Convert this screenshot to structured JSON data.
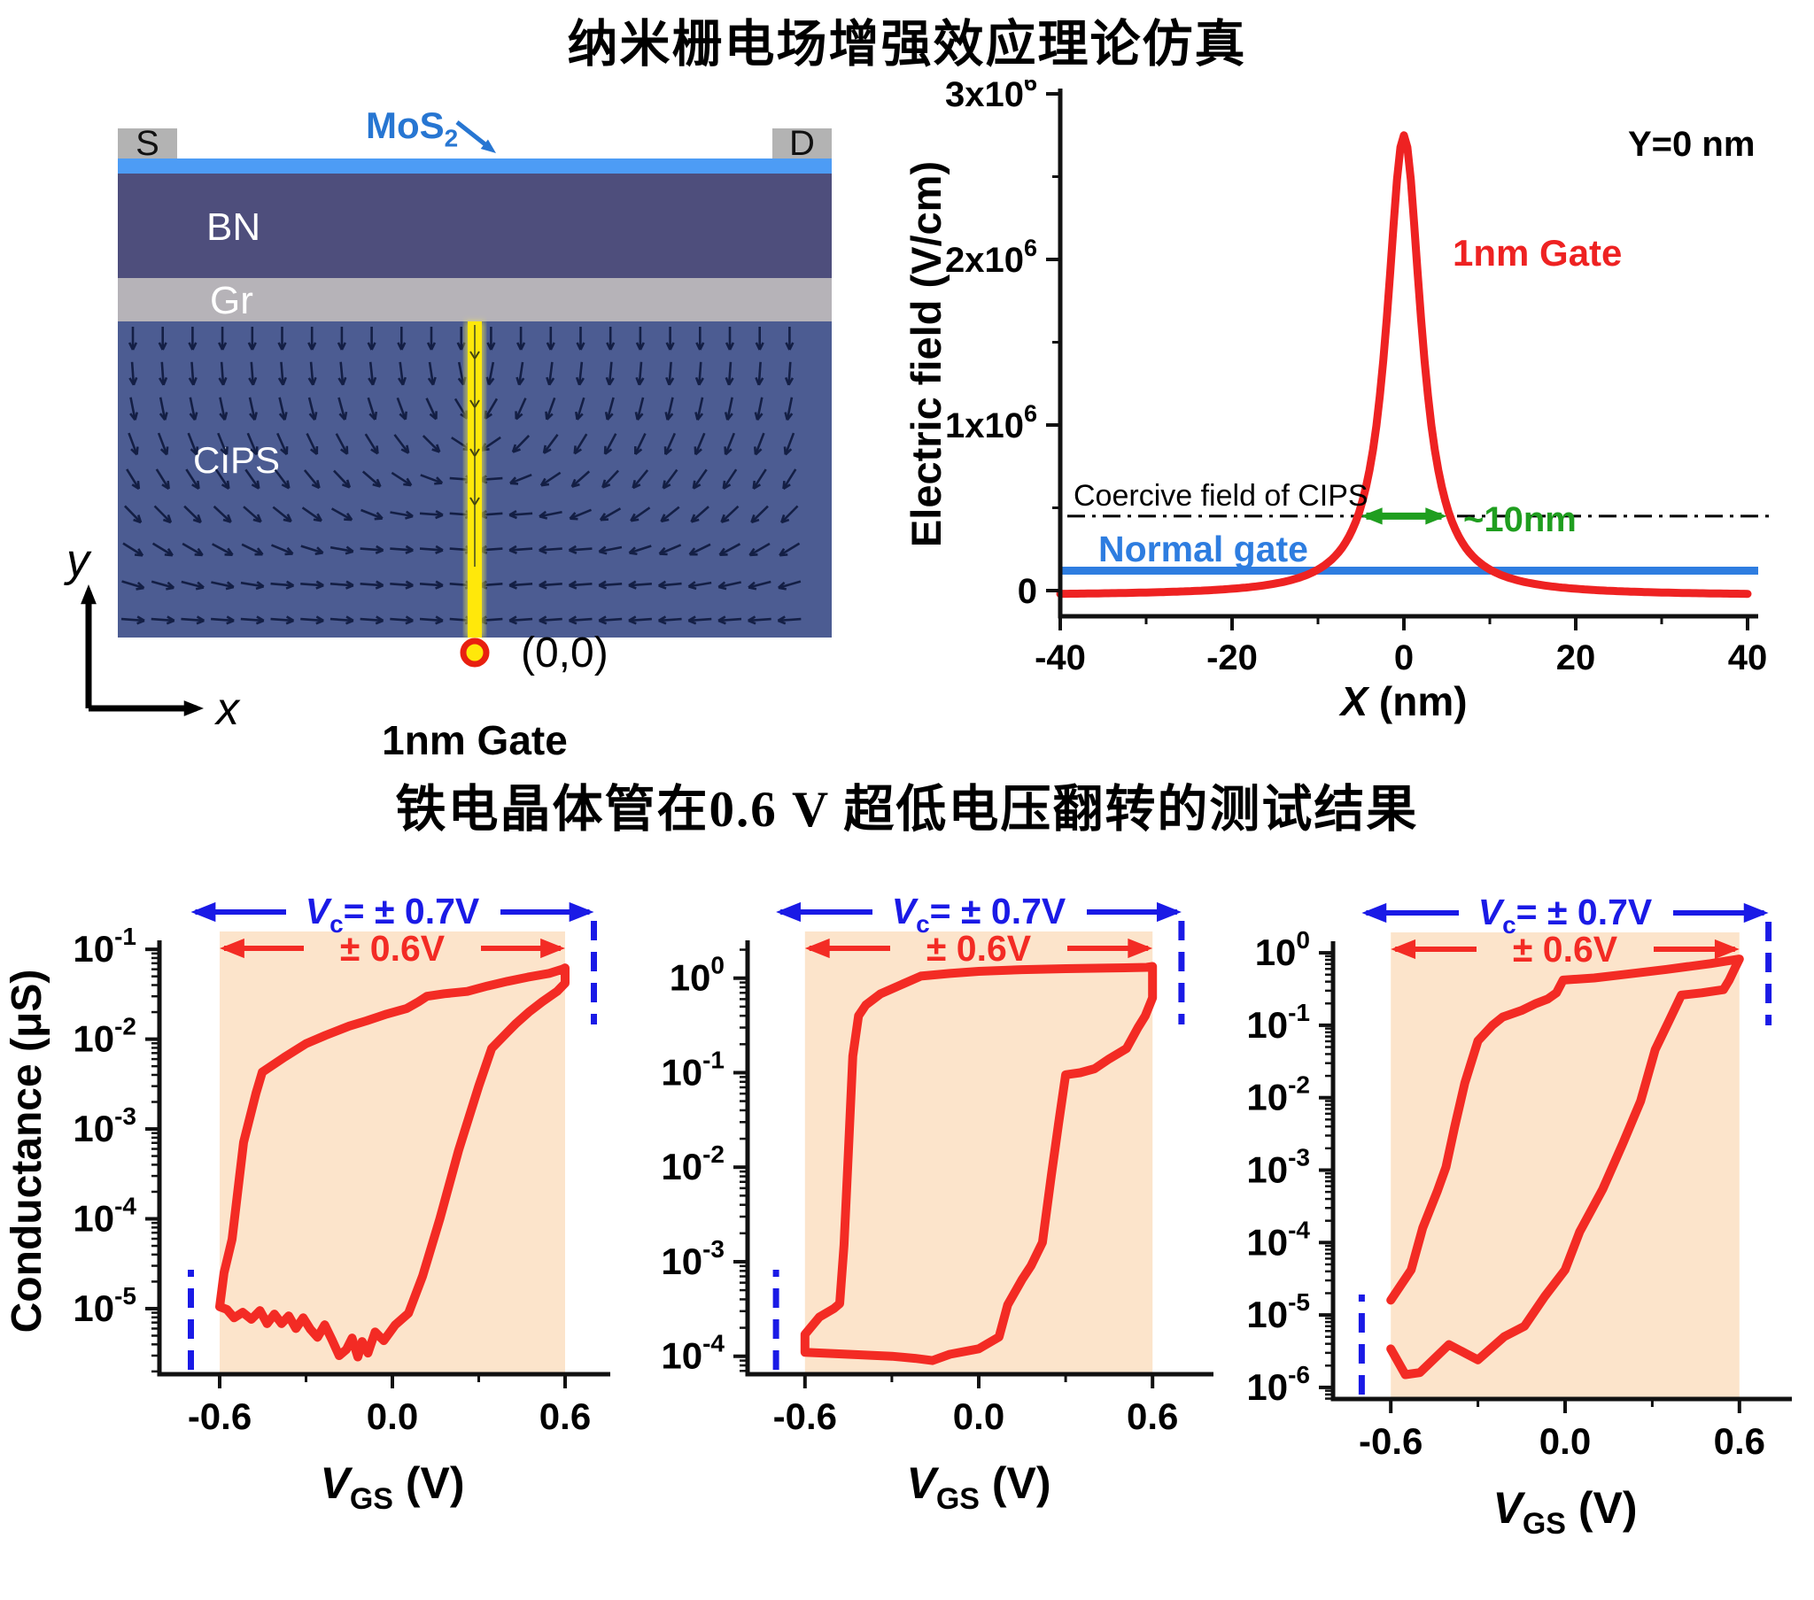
{
  "titles": {
    "main": "纳米栅电场增强效应理论仿真",
    "results": "铁电晶体管在0.6 V 超低电压翻转的测试结果"
  },
  "schematic": {
    "source": "S",
    "drain": "D",
    "mos2": {
      "base": "MoS",
      "sub": "2"
    },
    "bn": "BN",
    "gr": "Gr",
    "cips": "CIPS",
    "gate": "1nm Gate",
    "origin": "(0,0)",
    "x_label": "x",
    "y_label": "y",
    "colors": {
      "contact": "#b3b3b3",
      "mos2_layer": "#4d9cf5",
      "bn": "#4e4e7c",
      "gr": "#b6b3b8",
      "cips": "#4c5c92",
      "field_arrow": "#141f45",
      "gate_yellow": "#ffe randomly800",
      "gate_red": "#e02010",
      "label_blue": "#2776d2"
    }
  },
  "chart_data": [
    {
      "id": "field-profile",
      "type": "line",
      "xlabel_italic": "X",
      "xlabel_rest": " (nm)",
      "ylabel": "Electric field (V/cm)",
      "xlim": [
        -40,
        40
      ],
      "x_major_ticks": [
        {
          "v": -40,
          "label": "-40"
        },
        {
          "v": -20,
          "label": "-20"
        },
        {
          "v": 0,
          "label": "0"
        },
        {
          "v": 20,
          "label": "20"
        },
        {
          "v": 40,
          "label": "40"
        }
      ],
      "x_minor_ticks": [
        -30,
        -10,
        10,
        30
      ],
      "y_major_ticks": [
        {
          "v": 0,
          "base": "0",
          "exp": ""
        },
        {
          "v": 1000000,
          "base": "1x10",
          "exp": "6"
        },
        {
          "v": 2000000,
          "base": "2x10",
          "exp": "6"
        },
        {
          "v": 3000000,
          "base": "3x10",
          "exp": "6"
        }
      ],
      "y_minor_ticks": [
        500000,
        1500000,
        2500000
      ],
      "series": [
        {
          "name": "1nm Gate",
          "color": "#ee2222",
          "model": "lorentzian",
          "amplitude": 2780000,
          "center": 0,
          "hwhm": 2.45,
          "offset": -30000,
          "peak_value": 2750000
        },
        {
          "name": "Normal gate",
          "color": "#2e7de0",
          "model": "constant",
          "value": 120000
        }
      ],
      "coercive": {
        "label": "Coercive field of CIPS",
        "level": 450000
      },
      "width_annotation": {
        "label": "~10nm",
        "x_from": -5,
        "x_to": 5,
        "color": "#1f9e1f"
      },
      "condition_label": "Y=0 nm"
    },
    {
      "id": "transfer-1",
      "type": "line",
      "ylabel": "Conductance (μS)",
      "xlabel": {
        "italic": "V",
        "sub": "GS",
        "rest": " (V)"
      },
      "x_major_ticks": [
        {
          "v": -0.6,
          "label": "-0.6"
        },
        {
          "v": 0,
          "label": "0.0"
        },
        {
          "v": 0.6,
          "label": "0.6"
        }
      ],
      "x_minor_ticks": [
        -0.3,
        0.3
      ],
      "y_tick_exponents": [
        -1,
        -2,
        -3,
        -4,
        -5
      ],
      "sweep_region": {
        "from": -0.6,
        "to": 0.6,
        "color": "#fce4cb"
      },
      "vc_annotation": {
        "italic": "V",
        "sub": "c",
        "rest": "= ± 0.7V",
        "from": -0.7,
        "to": 0.7,
        "color": "#1a1ae6"
      },
      "sweep_annotation": {
        "label": "± 0.6V",
        "color": "#f32b24"
      },
      "loop_color": "#f32b24",
      "loop": [
        [
          -0.6,
          1.05e-05
        ],
        [
          -0.585,
          2.5e-05
        ],
        [
          -0.557,
          5.9e-05
        ],
        [
          -0.517,
          0.00071
        ],
        [
          -0.474,
          0.0025
        ],
        [
          -0.452,
          0.0043
        ],
        [
          -0.375,
          0.0063
        ],
        [
          -0.3,
          0.0089
        ],
        [
          -0.233,
          0.011
        ],
        [
          -0.15,
          0.014
        ],
        [
          -0.09,
          0.016
        ],
        [
          -0.02,
          0.019
        ],
        [
          0.05,
          0.022
        ],
        [
          0.09,
          0.026
        ],
        [
          0.12,
          0.03
        ],
        [
          0.18,
          0.032
        ],
        [
          0.26,
          0.034
        ],
        [
          0.33,
          0.039
        ],
        [
          0.4,
          0.044
        ],
        [
          0.47,
          0.049
        ],
        [
          0.545,
          0.054
        ],
        [
          0.59,
          0.06
        ],
        [
          0.6,
          0.062
        ],
        [
          0.6,
          0.042
        ],
        [
          0.572,
          0.034
        ],
        [
          0.52,
          0.026
        ],
        [
          0.474,
          0.02
        ],
        [
          0.43,
          0.015
        ],
        [
          0.4,
          0.012
        ],
        [
          0.345,
          0.0079
        ],
        [
          0.3,
          0.003
        ],
        [
          0.23,
          0.00058
        ],
        [
          0.165,
          0.0001
        ],
        [
          0.105,
          2.3e-05
        ],
        [
          0.056,
          8.9e-06
        ],
        [
          0.01,
          6.6e-06
        ],
        [
          -0.03,
          4.4e-06
        ],
        [
          -0.06,
          5.5e-06
        ],
        [
          -0.085,
          3.2e-06
        ],
        [
          -0.105,
          4.3e-06
        ],
        [
          -0.12,
          2.9e-06
        ],
        [
          -0.14,
          4.7e-06
        ],
        [
          -0.16,
          3.5e-06
        ],
        [
          -0.185,
          3e-06
        ],
        [
          -0.21,
          4.5e-06
        ],
        [
          -0.235,
          6.6e-06
        ],
        [
          -0.26,
          4.8e-06
        ],
        [
          -0.285,
          5.9e-06
        ],
        [
          -0.31,
          7.9e-06
        ],
        [
          -0.335,
          6e-06
        ],
        [
          -0.36,
          8.3e-06
        ],
        [
          -0.385,
          6.8e-06
        ],
        [
          -0.41,
          8.7e-06
        ],
        [
          -0.435,
          6.8e-06
        ],
        [
          -0.46,
          9.5e-06
        ],
        [
          -0.49,
          7.6e-06
        ],
        [
          -0.52,
          9.1e-06
        ],
        [
          -0.55,
          7.9e-06
        ],
        [
          -0.575,
          9.8e-06
        ],
        [
          -0.6,
          1.05e-05
        ]
      ]
    },
    {
      "id": "transfer-2",
      "type": "line",
      "ylabel": "",
      "xlabel": {
        "italic": "V",
        "sub": "GS",
        "rest": " (V)"
      },
      "x_major_ticks": [
        {
          "v": -0.6,
          "label": "-0.6"
        },
        {
          "v": 0,
          "label": "0.0"
        },
        {
          "v": 0.6,
          "label": "0.6"
        }
      ],
      "x_minor_ticks": [
        -0.3,
        0.3
      ],
      "y_tick_exponents": [
        0,
        -1,
        -2,
        -3,
        -4
      ],
      "sweep_region": {
        "from": -0.6,
        "to": 0.6,
        "color": "#fce4cb"
      },
      "vc_annotation": {
        "italic": "V",
        "sub": "c",
        "rest": "= ± 0.7V",
        "from": -0.7,
        "to": 0.7,
        "color": "#1a1ae6"
      },
      "sweep_annotation": {
        "label": "± 0.6V",
        "color": "#f32b24"
      },
      "loop_color": "#f32b24",
      "loop": [
        [
          -0.6,
          0.00017
        ],
        [
          -0.55,
          0.00026
        ],
        [
          -0.5,
          0.00032
        ],
        [
          -0.48,
          0.00036
        ],
        [
          -0.465,
          0.0015
        ],
        [
          -0.45,
          0.015
        ],
        [
          -0.435,
          0.15
        ],
        [
          -0.415,
          0.4
        ],
        [
          -0.39,
          0.52
        ],
        [
          -0.34,
          0.68
        ],
        [
          -0.28,
          0.82
        ],
        [
          -0.2,
          1.05
        ],
        [
          -0.1,
          1.12
        ],
        [
          0.0,
          1.18
        ],
        [
          0.15,
          1.23
        ],
        [
          0.3,
          1.26
        ],
        [
          0.45,
          1.28
        ],
        [
          0.58,
          1.3
        ],
        [
          0.6,
          1.33
        ],
        [
          0.6,
          0.62
        ],
        [
          0.575,
          0.4
        ],
        [
          0.55,
          0.3
        ],
        [
          0.51,
          0.18
        ],
        [
          0.45,
          0.14
        ],
        [
          0.4,
          0.11
        ],
        [
          0.35,
          0.1
        ],
        [
          0.3,
          0.095
        ],
        [
          0.275,
          0.028
        ],
        [
          0.25,
          0.008
        ],
        [
          0.22,
          0.0016
        ],
        [
          0.18,
          0.0009
        ],
        [
          0.15,
          0.00065
        ],
        [
          0.1,
          0.00035
        ],
        [
          0.07,
          0.00016
        ],
        [
          0.0,
          0.00012
        ],
        [
          -0.1,
          0.000105
        ],
        [
          -0.16,
          9e-05
        ],
        [
          -0.22,
          9.5e-05
        ],
        [
          -0.3,
          0.0001
        ],
        [
          -0.45,
          0.000105
        ],
        [
          -0.6,
          0.00011
        ],
        [
          -0.6,
          0.00017
        ]
      ]
    },
    {
      "id": "transfer-3",
      "type": "line",
      "ylabel": "",
      "xlabel": {
        "italic": "V",
        "sub": "GS",
        "rest": " (V)"
      },
      "x_major_ticks": [
        {
          "v": -0.6,
          "label": "-0.6"
        },
        {
          "v": 0,
          "label": "0.0"
        },
        {
          "v": 0.6,
          "label": "0.6"
        }
      ],
      "x_minor_ticks": [
        -0.3,
        0.3
      ],
      "y_tick_exponents": [
        0,
        -1,
        -2,
        -3,
        -4,
        -5,
        -6
      ],
      "sweep_region": {
        "from": -0.6,
        "to": 0.6,
        "color": "#fce4cb"
      },
      "vc_annotation": {
        "italic": "V",
        "sub": "c",
        "rest": "= ± 0.7V",
        "from": -0.7,
        "to": 0.7,
        "color": "#1a1ae6"
      },
      "sweep_annotation": {
        "label": "± 0.6V",
        "color": "#f32b24"
      },
      "loop_color": "#f32b24",
      "loop": [
        [
          -0.6,
          1.6e-05
        ],
        [
          -0.53,
          4.2e-05
        ],
        [
          -0.49,
          0.00016
        ],
        [
          -0.44,
          0.00051
        ],
        [
          -0.41,
          0.0011
        ],
        [
          -0.38,
          0.004
        ],
        [
          -0.345,
          0.016
        ],
        [
          -0.3,
          0.061
        ],
        [
          -0.25,
          0.1
        ],
        [
          -0.215,
          0.13
        ],
        [
          -0.15,
          0.16
        ],
        [
          -0.1,
          0.2
        ],
        [
          -0.06,
          0.23
        ],
        [
          -0.03,
          0.28
        ],
        [
          -0.007,
          0.42
        ],
        [
          0.1,
          0.45
        ],
        [
          0.2,
          0.5
        ],
        [
          0.35,
          0.59
        ],
        [
          0.5,
          0.71
        ],
        [
          0.6,
          0.82
        ],
        [
          0.585,
          0.62
        ],
        [
          0.565,
          0.42
        ],
        [
          0.545,
          0.31
        ],
        [
          0.47,
          0.28
        ],
        [
          0.4,
          0.26
        ],
        [
          0.36,
          0.12
        ],
        [
          0.31,
          0.046
        ],
        [
          0.26,
          0.009
        ],
        [
          0.2,
          0.0024
        ],
        [
          0.13,
          0.00055
        ],
        [
          0.05,
          0.00014
        ],
        [
          0.0,
          4.2e-05
        ],
        [
          -0.07,
          1.8e-05
        ],
        [
          -0.14,
          7e-06
        ],
        [
          -0.21,
          5e-06
        ],
        [
          -0.3,
          2.4e-06
        ],
        [
          -0.4,
          3.9e-06
        ],
        [
          -0.5,
          1.6e-06
        ],
        [
          -0.55,
          1.5e-06
        ],
        [
          -0.6,
          3.4e-06
        ]
      ]
    }
  ]
}
